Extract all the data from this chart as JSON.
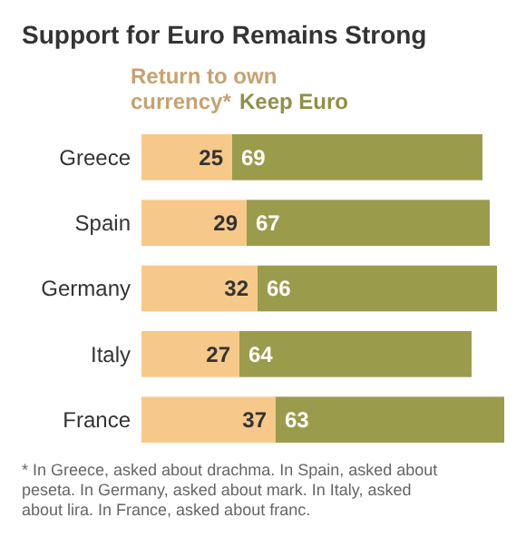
{
  "chart_data": {
    "type": "bar",
    "title": "Support for Euro Remains Strong",
    "orientation": "horizontal",
    "stacked": true,
    "data_labels": true,
    "legend": "top",
    "categories": [
      "Greece",
      "Spain",
      "Germany",
      "Italy",
      "France"
    ],
    "series": [
      {
        "name": "Return to own currency*",
        "color": "#f6c98a",
        "values": [
          25,
          29,
          32,
          27,
          37
        ]
      },
      {
        "name": "Keep Euro",
        "color": "#9b9b4c",
        "values": [
          69,
          67,
          66,
          64,
          63
        ]
      }
    ],
    "annotations": [
      "* In Greece, asked about drachma. In Spain, asked about peseta. In Germany, asked about mark. In Italy, asked about lira. In France, asked about franc."
    ]
  }
}
